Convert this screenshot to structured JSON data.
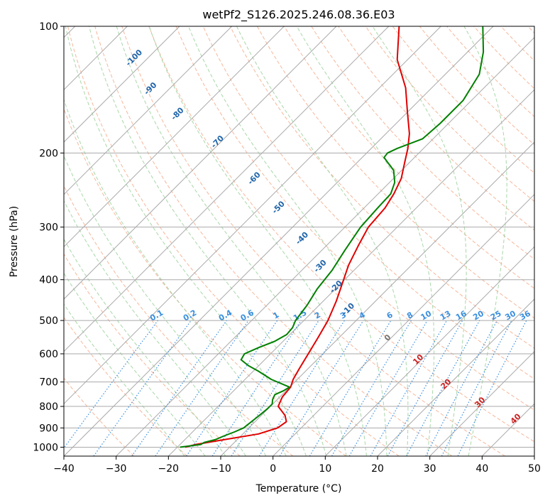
{
  "chart_data": {
    "type": "line",
    "title": "wetPf2_S126.2025.246.08.36.E03",
    "xlabel": "Temperature (°C)",
    "ylabel": "Pressure (hPa)",
    "xlim": [
      -40,
      50
    ],
    "ylim": [
      1050,
      100
    ],
    "x_ticks": [
      -40,
      -30,
      -20,
      -10,
      0,
      10,
      20,
      30,
      40,
      50
    ],
    "x_tick_labels": [
      "−40",
      "−30",
      "−20",
      "−10",
      "0",
      "10",
      "20",
      "30",
      "40",
      "50"
    ],
    "y_ticks": [
      100,
      200,
      300,
      400,
      500,
      600,
      700,
      800,
      900,
      1000
    ],
    "y_tick_labels": [
      "100",
      "200",
      "300",
      "400",
      "500",
      "600",
      "700",
      "800",
      "900",
      "1000"
    ],
    "skew_deg": 45,
    "colors": {
      "temperature": "#e00000",
      "dewpoint": "#008000",
      "isobar": "#aaaaaa",
      "isotherm": "#aaaaaa",
      "dry_adiabat": "#f4a582",
      "moist_adiabat": "#9fd39f",
      "mixing_ratio": "#3b8fde",
      "wetbulb_label": "#2166ac",
      "zero_isotherm": "#777777",
      "hot_isotherm": "#cc2222"
    },
    "series": [
      {
        "name": "Temperature",
        "color": "#e00000",
        "points": [
          [
            1000,
            -18.5
          ],
          [
            985,
            -17
          ],
          [
            960,
            -12.5
          ],
          [
            930,
            -7
          ],
          [
            900,
            -4.5
          ],
          [
            870,
            -4
          ],
          [
            840,
            -5.5
          ],
          [
            800,
            -8.5
          ],
          [
            760,
            -9.5
          ],
          [
            720,
            -9.8
          ],
          [
            690,
            -10.8
          ],
          [
            650,
            -11.7
          ],
          [
            600,
            -12.8
          ],
          [
            550,
            -14
          ],
          [
            500,
            -15.4
          ],
          [
            450,
            -17.5
          ],
          [
            400,
            -20.2
          ],
          [
            370,
            -22
          ],
          [
            330,
            -24
          ],
          [
            300,
            -25.5
          ],
          [
            270,
            -26
          ],
          [
            250,
            -27
          ],
          [
            230,
            -28.5
          ],
          [
            210,
            -31
          ],
          [
            195,
            -33
          ],
          [
            180,
            -35.5
          ],
          [
            160,
            -40
          ],
          [
            140,
            -45
          ],
          [
            120,
            -52
          ],
          [
            100,
            -58
          ]
        ]
      },
      {
        "name": "Dewpoint",
        "color": "#008000",
        "points": [
          [
            1000,
            -19.5
          ],
          [
            985,
            -16
          ],
          [
            975,
            -15.8
          ],
          [
            960,
            -14.2
          ],
          [
            940,
            -13.2
          ],
          [
            920,
            -12
          ],
          [
            900,
            -11
          ],
          [
            870,
            -10.7
          ],
          [
            840,
            -10.4
          ],
          [
            810,
            -10.1
          ],
          [
            790,
            -10.1
          ],
          [
            770,
            -10.9
          ],
          [
            750,
            -11.4
          ],
          [
            735,
            -10.5
          ],
          [
            720,
            -10
          ],
          [
            690,
            -15
          ],
          [
            660,
            -19
          ],
          [
            640,
            -22
          ],
          [
            620,
            -24.5
          ],
          [
            600,
            -25
          ],
          [
            580,
            -23.5
          ],
          [
            560,
            -21.6
          ],
          [
            540,
            -20.6
          ],
          [
            520,
            -20.8
          ],
          [
            500,
            -21.6
          ],
          [
            460,
            -22.3
          ],
          [
            420,
            -23.5
          ],
          [
            380,
            -24.2
          ],
          [
            340,
            -25.6
          ],
          [
            300,
            -27
          ],
          [
            270,
            -27.4
          ],
          [
            250,
            -27.6
          ],
          [
            235,
            -29
          ],
          [
            220,
            -31.5
          ],
          [
            205,
            -35.8
          ],
          [
            200,
            -36
          ],
          [
            195,
            -35
          ],
          [
            185,
            -32
          ],
          [
            170,
            -31.6
          ],
          [
            150,
            -31.6
          ],
          [
            130,
            -33.5
          ],
          [
            115,
            -37
          ],
          [
            100,
            -42
          ]
        ]
      }
    ],
    "wetbulb_labels": [
      "-100",
      "-90",
      "-80",
      "-70",
      "-60",
      "-50",
      "-40",
      "-30",
      "-20",
      "-10"
    ],
    "wetbulb_label_points": [
      [
        120,
        -102
      ],
      [
        142,
        -93
      ],
      [
        163,
        -83
      ],
      [
        190,
        -70
      ],
      [
        232,
        -56
      ],
      [
        272,
        -45.8
      ],
      [
        322,
        -35.4
      ],
      [
        375,
        -26.6
      ],
      [
        420,
        -19.6
      ],
      [
        475,
        -13
      ]
    ],
    "mixing_ratio_labels": [
      "0.1",
      "0.2",
      "0.4",
      "0.6",
      "1",
      "1.5",
      "2",
      "3",
      "4",
      "6",
      "8",
      "10",
      "13",
      "16",
      "20",
      "25",
      "30",
      "36"
    ],
    "mixing_ratio_values": [
      0.1,
      0.2,
      0.4,
      0.6,
      1,
      1.5,
      2,
      3,
      4,
      6,
      8,
      10,
      13,
      16,
      20,
      25,
      30,
      36
    ],
    "isotherm_labels": [
      "0",
      "10",
      "20",
      "30",
      "40"
    ],
    "isotherm_label_points": [
      [
        555,
        0
      ],
      [
        625,
        10
      ],
      [
        715,
        20
      ],
      [
        790,
        30
      ],
      [
        865,
        40
      ]
    ]
  }
}
